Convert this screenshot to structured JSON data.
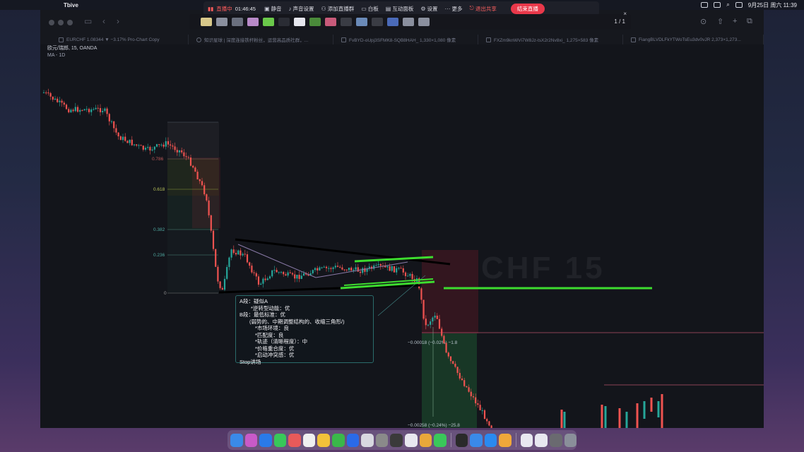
{
  "menubar": {
    "app_name": "Tbive",
    "datetime": "9月25日 周六  11:39"
  },
  "meeting_bar": {
    "live_label": "直播中",
    "timer": "01:46:45",
    "items": [
      "静音",
      "声音设置",
      "添加直播群",
      "白板",
      "互动面板",
      "设置",
      "更多"
    ],
    "stop_share": "退出共享",
    "end_live": "结束直播"
  },
  "annotation_bar": {
    "page_indicator": "1 / 1",
    "close_glyph": "×"
  },
  "window": {
    "tabs": [
      "EURCHF 1.08344 ▼ −3.17% Pro-Chart Copy",
      "知识星球 | 深度连接铁杆粉丝，运营高品质社群，...",
      "FvBYD-oUpj3SFMK8-SQB8HAH_ 1,330×1,080 像素",
      "FXZm9knWVi7W8Jz-tsX2r2Nv8xi_ 1,275×583 像素",
      "FiangBLVDLFkYTWoTsEu3dv0vJR 2,373×1,273..."
    ]
  },
  "chart": {
    "symbol_line": "欧元/瑞郎, 15, OANDA",
    "indicator_line": "MA - 1D",
    "fib_levels": [
      "0.786",
      "0.618",
      "0.382",
      "0.236",
      "0"
    ],
    "measure_1": "−0.00018 (−0.02%) −1.8",
    "measure_2": "−0.00258 (−0.24%) −25.8",
    "watermark": "CHF 15"
  },
  "chart_data": {
    "type": "candlestick",
    "title": "",
    "xlabel": "",
    "ylabel": "",
    "trend": "downtrend, consolidation (converging triangle), then breakdown, then small rebound"
  },
  "note": {
    "lines": [
      "A段：疑似A",
      "*逆转型动能：优",
      "B段：最低标准：优",
      "(弱势的、中期调整结构的、收缩三角形/)",
      "*市场环境：良",
      "*匹配度：良",
      "*轨迹（清晰程度）：中",
      "*价格重合度：优",
      "*启动冲突感：优",
      "Stop讲场"
    ]
  },
  "colors": {
    "bull": "#26a69a",
    "bear": "#ef5350",
    "green_line": "#3ddc2f",
    "trend_line": "#000000"
  }
}
